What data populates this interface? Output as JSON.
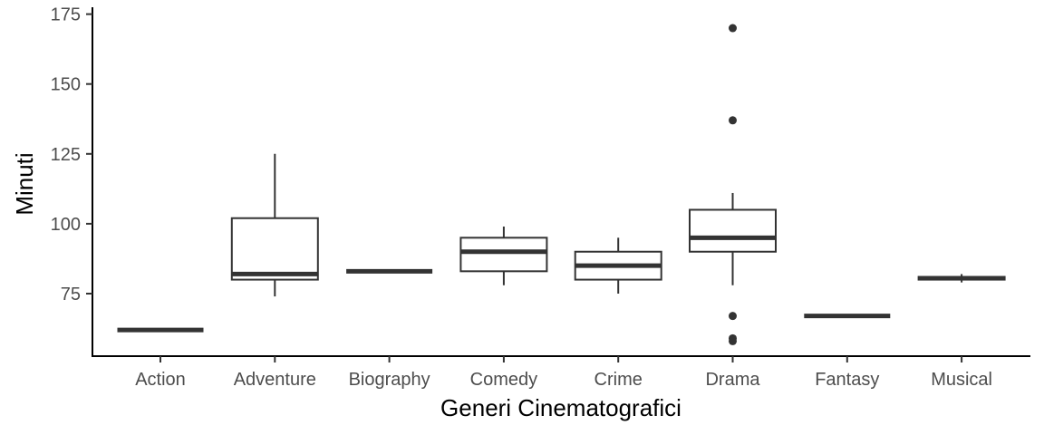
{
  "chart_data": {
    "type": "boxplot",
    "title": "",
    "xlabel": "Generi Cinematografici",
    "ylabel": "Minuti",
    "ylim": [
      62,
      175
    ],
    "yticks": [
      75,
      100,
      125,
      150,
      175
    ],
    "grid": false,
    "categories": [
      "Action",
      "Adventure",
      "Biography",
      "Comedy",
      "Crime",
      "Drama",
      "Fantasy",
      "Musical"
    ],
    "boxes": [
      {
        "min": 62,
        "q1": 62,
        "median": 62,
        "q3": 62,
        "max": 62,
        "outliers": []
      },
      {
        "min": 74,
        "q1": 80,
        "median": 82,
        "q3": 102,
        "max": 125,
        "outliers": []
      },
      {
        "min": 83,
        "q1": 83,
        "median": 83,
        "q3": 83,
        "max": 83,
        "outliers": []
      },
      {
        "min": 78,
        "q1": 83,
        "median": 90,
        "q3": 95,
        "max": 99,
        "outliers": []
      },
      {
        "min": 75,
        "q1": 80,
        "median": 85,
        "q3": 90,
        "max": 95,
        "outliers": []
      },
      {
        "min": 78,
        "q1": 90,
        "median": 95,
        "q3": 105,
        "max": 111,
        "outliers": [
          170,
          137,
          67,
          59,
          58
        ]
      },
      {
        "min": 67,
        "q1": 67,
        "median": 67,
        "q3": 67,
        "max": 67,
        "outliers": []
      },
      {
        "min": 79,
        "q1": 80,
        "median": 80.5,
        "q3": 81,
        "max": 82,
        "outliers": []
      }
    ]
  }
}
